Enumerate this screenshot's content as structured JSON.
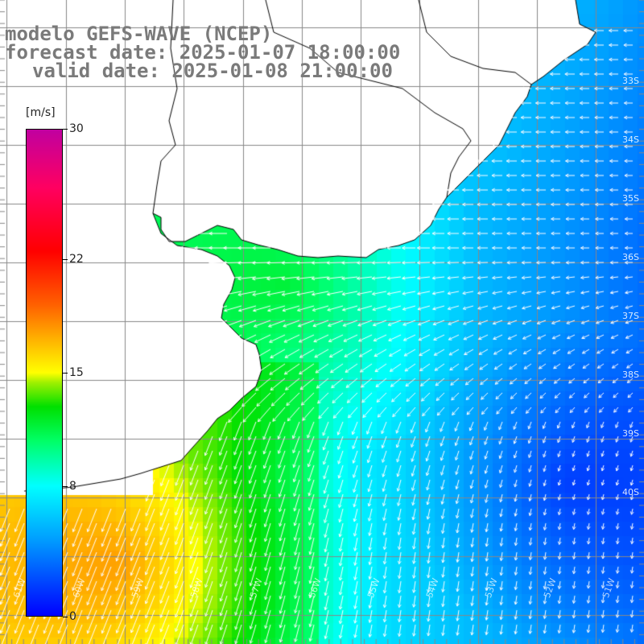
{
  "title": {
    "line1": "modelo GEFS-WAVE (NCEP)",
    "line2": "forecast date: 2025-01-07 18:00:00",
    "line3": "valid date: 2025-01-08 21:00:00"
  },
  "colorbar": {
    "unit": "[m/s]",
    "min": 0,
    "max": 30,
    "ticks": [
      {
        "value": 30,
        "label": "30"
      },
      {
        "value": 22,
        "label": "22"
      },
      {
        "value": 15,
        "label": "15"
      },
      {
        "value": 8,
        "label": "8"
      },
      {
        "value": 0,
        "label": "0"
      }
    ]
  },
  "map": {
    "variable": "wind speed and direction",
    "region": "Rio de la Plata and South Atlantic coast",
    "latitude_labels": [
      "33S",
      "34S",
      "35S",
      "36S",
      "37S",
      "38S",
      "39S",
      "40S"
    ],
    "longitude_labels": [
      "61W",
      "60W",
      "59W",
      "58W",
      "57W",
      "56W",
      "55W",
      "54W",
      "53W",
      "52W",
      "51W"
    ],
    "colors": {
      "land": "#ffffff",
      "grid": "#888888",
      "coastline": "#000000",
      "arrows": "#ffffff"
    }
  }
}
